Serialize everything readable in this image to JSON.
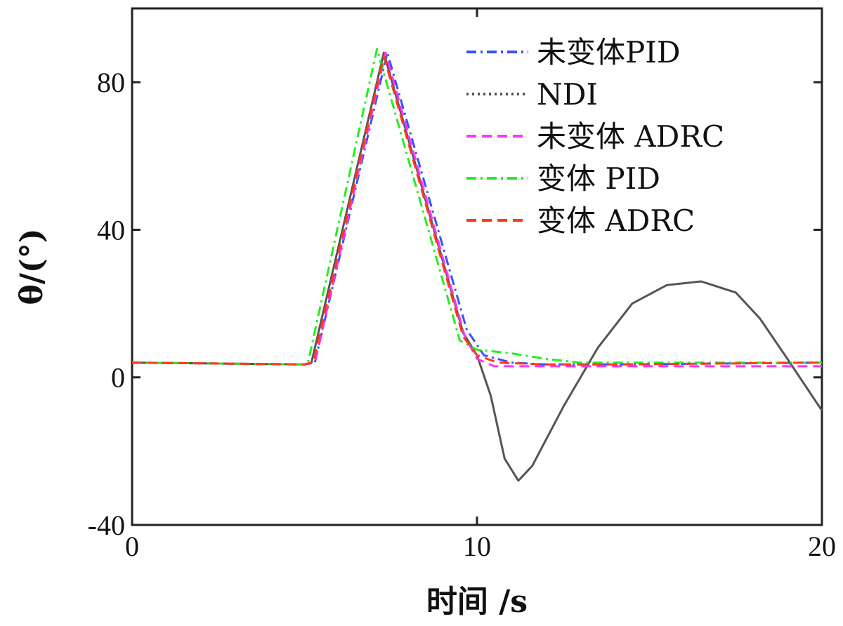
{
  "chart_data": {
    "type": "line",
    "xlabel": "时间 /s",
    "ylabel": "θ/(°)",
    "xlim": [
      0,
      20
    ],
    "ylim": [
      -40,
      100
    ],
    "xticks": [
      {
        "value": 0,
        "label": "0"
      },
      {
        "value": 10,
        "label": "10"
      },
      {
        "value": 20,
        "label": "20"
      }
    ],
    "yticks": [
      {
        "value": -40,
        "label": "-40"
      },
      {
        "value": 0,
        "label": "0"
      },
      {
        "value": 40,
        "label": "40"
      },
      {
        "value": 80,
        "label": "80"
      }
    ],
    "grid": false,
    "legend_position": "top-right",
    "series": [
      {
        "name": "未变体PID",
        "color": "#3a50ff",
        "dash": "dash-dot",
        "x": [
          0,
          5,
          5.3,
          7.4,
          9.7,
          10.2,
          11,
          12,
          14,
          20
        ],
        "y": [
          4,
          3.5,
          4,
          88,
          13,
          6,
          4,
          3.5,
          3.5,
          4
        ]
      },
      {
        "name": "NDI",
        "color": "#555555",
        "dash": "dotted",
        "x": [
          0,
          5,
          5.2,
          7.3,
          9.6,
          10,
          10.4,
          10.8,
          11.2,
          11.6,
          12.5,
          13.5,
          14.5,
          15.5,
          16.5,
          17.5,
          18.2,
          19,
          20
        ],
        "y": [
          4,
          3.5,
          4,
          88,
          12,
          6,
          -5,
          -22,
          -28,
          -24,
          -8,
          8,
          20,
          25,
          26,
          23,
          16,
          5,
          -9
        ]
      },
      {
        "name": "未变体 ADRC",
        "color": "#ff33ff",
        "dash": "dashed",
        "x": [
          0,
          5,
          5.3,
          7.35,
          9.65,
          10,
          10.5,
          12,
          14,
          20
        ],
        "y": [
          4,
          3.5,
          4,
          88,
          11,
          5,
          3,
          3,
          3,
          3
        ]
      },
      {
        "name": "变体 PID",
        "color": "#22ee22",
        "dash": "dash-dot",
        "x": [
          0,
          5,
          5.1,
          7.1,
          9.5,
          10,
          11,
          12,
          13,
          14,
          20
        ],
        "y": [
          4,
          3.5,
          4,
          89,
          10,
          7.5,
          6.5,
          5,
          4,
          4,
          4
        ]
      },
      {
        "name": "变体 ADRC",
        "color": "#ff3a1a",
        "dash": "dashed",
        "x": [
          0,
          5,
          5.25,
          7.3,
          9.6,
          10,
          10.6,
          12,
          14,
          20
        ],
        "y": [
          4,
          3.5,
          4,
          87,
          11,
          6,
          4,
          3.5,
          3.5,
          4
        ]
      }
    ]
  }
}
